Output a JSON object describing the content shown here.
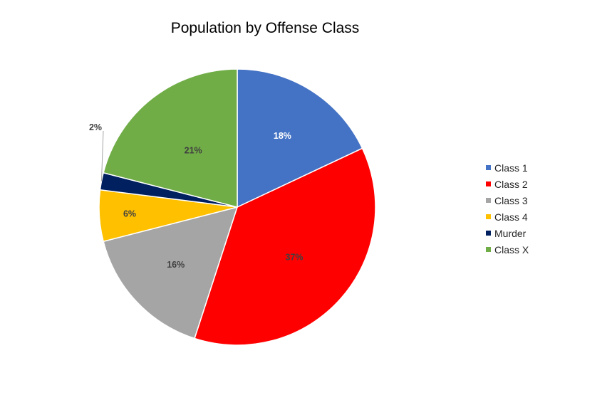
{
  "chart_data": {
    "type": "pie",
    "title": "Population by Offense Class",
    "categories": [
      "Class 1",
      "Class 2",
      "Class 3",
      "Class 4",
      "Murder",
      "Class X"
    ],
    "values": [
      18,
      37,
      16,
      6,
      2,
      21
    ],
    "data_labels": [
      "18%",
      "37%",
      "16%",
      "6%",
      "2%",
      "21%"
    ],
    "colors": [
      "#4472C4",
      "#FF0000",
      "#A5A5A5",
      "#FFC000",
      "#002060",
      "#70AD47"
    ],
    "start_angle_deg": 0,
    "direction": "clockwise",
    "legend_position": "right"
  }
}
